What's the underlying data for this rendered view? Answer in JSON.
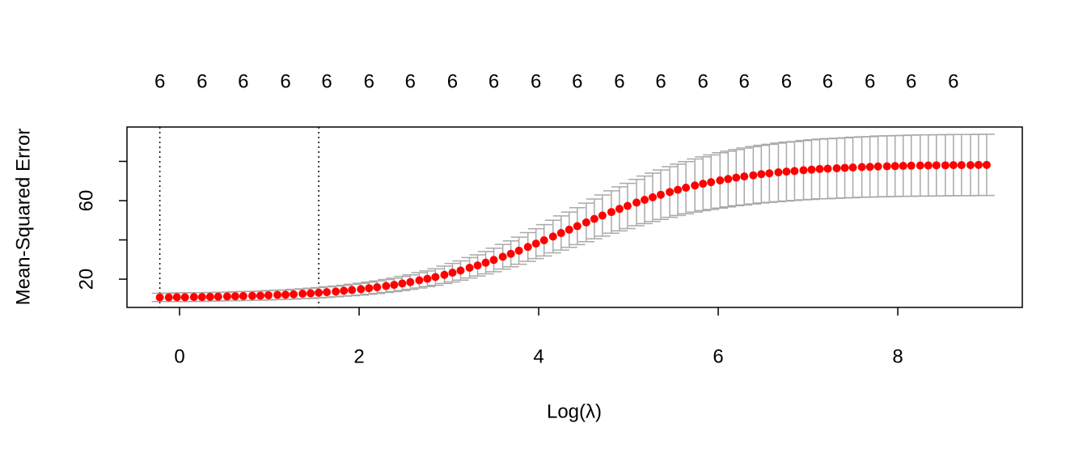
{
  "chart_data": {
    "type": "errorbar",
    "xlabel": "Log(λ)",
    "ylabel": "Mean-Squared Error",
    "xlim": [
      -0.586,
      9.387
    ],
    "ylim": [
      5.6,
      97.5
    ],
    "xticks": [
      0,
      2,
      4,
      6,
      8
    ],
    "yticks": [
      20,
      {
        "value": 40,
        "label": null
      },
      60,
      {
        "value": 80,
        "label": null
      }
    ],
    "top_ticks": [
      {
        "value": -0.22,
        "label": "6"
      },
      {
        "value": 0.25,
        "label": "6"
      },
      {
        "value": 0.71,
        "label": "6"
      },
      {
        "value": 1.18,
        "label": "6"
      },
      {
        "value": 1.64,
        "label": "6"
      },
      {
        "value": 2.11,
        "label": "6"
      },
      {
        "value": 2.57,
        "label": "6"
      },
      {
        "value": 3.04,
        "label": "6"
      },
      {
        "value": 3.5,
        "label": "6"
      },
      {
        "value": 3.97,
        "label": "6"
      },
      {
        "value": 4.43,
        "label": "6"
      },
      {
        "value": 4.9,
        "label": "6"
      },
      {
        "value": 5.36,
        "label": "6"
      },
      {
        "value": 5.83,
        "label": "6"
      },
      {
        "value": 6.29,
        "label": "6"
      },
      {
        "value": 6.76,
        "label": "6"
      },
      {
        "value": 7.22,
        "label": "6"
      },
      {
        "value": 7.69,
        "label": "6"
      },
      {
        "value": 8.15,
        "label": "6"
      },
      {
        "value": 8.62,
        "label": "6"
      }
    ],
    "vlines": [
      -0.22,
      1.55
    ],
    "point_color": "#ff0000",
    "errorbar_color": "#a9a9a9",
    "x": [
      -0.22,
      -0.12,
      -0.03,
      0.06,
      0.16,
      0.25,
      0.34,
      0.43,
      0.53,
      0.62,
      0.71,
      0.81,
      0.9,
      0.99,
      1.09,
      1.18,
      1.27,
      1.37,
      1.46,
      1.55,
      1.64,
      1.74,
      1.83,
      1.92,
      2.02,
      2.11,
      2.2,
      2.3,
      2.39,
      2.48,
      2.57,
      2.67,
      2.76,
      2.85,
      2.95,
      3.04,
      3.13,
      3.23,
      3.32,
      3.41,
      3.5,
      3.6,
      3.69,
      3.78,
      3.88,
      3.97,
      4.06,
      4.16,
      4.25,
      4.34,
      4.43,
      4.53,
      4.62,
      4.71,
      4.81,
      4.9,
      4.99,
      5.09,
      5.18,
      5.27,
      5.36,
      5.46,
      5.55,
      5.64,
      5.74,
      5.83,
      5.92,
      6.02,
      6.11,
      6.2,
      6.29,
      6.39,
      6.48,
      6.57,
      6.67,
      6.76,
      6.85,
      6.95,
      7.04,
      7.13,
      7.22,
      7.32,
      7.41,
      7.5,
      7.6,
      7.69,
      7.78,
      7.88,
      7.97,
      8.06,
      8.15,
      8.25,
      8.34,
      8.43,
      8.53,
      8.62,
      8.71,
      8.81,
      8.9,
      8.99
    ],
    "values": [
      10.7,
      10.7,
      10.8,
      10.8,
      10.9,
      10.9,
      11.0,
      11.1,
      11.2,
      11.3,
      11.4,
      11.5,
      11.6,
      11.8,
      12.0,
      12.1,
      12.3,
      12.6,
      12.8,
      13.1,
      13.4,
      13.7,
      14.1,
      14.5,
      14.9,
      15.4,
      15.9,
      16.5,
      17.1,
      17.8,
      18.5,
      19.4,
      20.2,
      21.1,
      22.2,
      23.3,
      24.4,
      25.8,
      27.0,
      28.4,
      29.8,
      31.4,
      32.9,
      34.5,
      36.4,
      38.1,
      39.8,
      41.7,
      43.5,
      45.2,
      47.0,
      48.9,
      50.7,
      52.4,
      54.2,
      55.8,
      57.3,
      59.0,
      60.4,
      61.7,
      63.0,
      64.4,
      65.5,
      66.6,
      67.7,
      68.6,
      69.4,
      70.3,
      71.0,
      71.7,
      72.3,
      72.9,
      73.5,
      73.9,
      74.4,
      74.8,
      75.1,
      75.5,
      75.8,
      76.1,
      76.3,
      76.5,
      76.7,
      76.9,
      77.1,
      77.2,
      77.4,
      77.5,
      77.6,
      77.7,
      77.8,
      77.9,
      77.9,
      78.0,
      78.0,
      78.1,
      78.1,
      78.1,
      78.2,
      78.2
    ],
    "errors": [
      2.1,
      2.1,
      2.2,
      2.2,
      2.2,
      2.2,
      2.2,
      2.2,
      2.2,
      2.3,
      2.3,
      2.3,
      2.3,
      2.4,
      2.4,
      2.4,
      2.5,
      2.5,
      2.6,
      2.6,
      2.7,
      2.7,
      2.8,
      2.9,
      3.0,
      3.1,
      3.2,
      3.3,
      3.4,
      3.6,
      3.7,
      3.9,
      4.0,
      4.2,
      4.4,
      4.7,
      4.9,
      5.2,
      5.4,
      5.7,
      6.0,
      6.3,
      6.6,
      6.9,
      7.3,
      7.6,
      8.0,
      8.3,
      8.7,
      9.0,
      9.4,
      9.8,
      10.1,
      10.5,
      10.8,
      11.2,
      11.5,
      11.8,
      12.1,
      12.3,
      12.6,
      12.9,
      13.1,
      13.3,
      13.5,
      13.7,
      13.9,
      14.1,
      14.2,
      14.3,
      14.5,
      14.6,
      14.7,
      14.8,
      14.9,
      15.0,
      15.0,
      15.1,
      15.2,
      15.2,
      15.3,
      15.3,
      15.3,
      15.4,
      15.4,
      15.4,
      15.5,
      15.5,
      15.5,
      15.5,
      15.6,
      15.6,
      15.6,
      15.6,
      15.6,
      15.6,
      15.6,
      15.6,
      15.6,
      15.6
    ]
  }
}
